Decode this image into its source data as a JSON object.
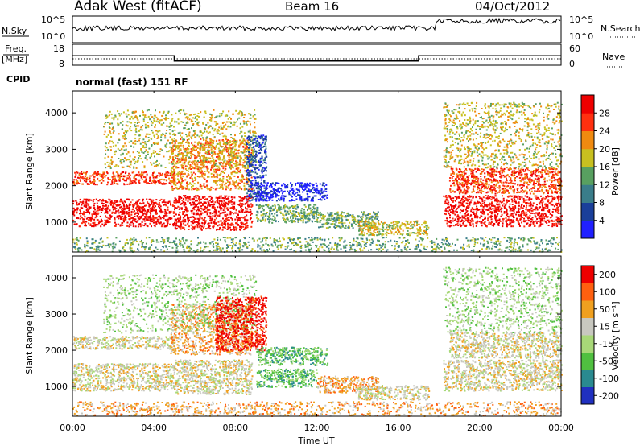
{
  "header": {
    "station": "Adak West (fitACF)",
    "beam": "Beam 16",
    "date": "04/Oct/2012"
  },
  "sky_panel": {
    "left_label": "N.Sky",
    "right_label": "N.Search",
    "left_ticks": [
      "10^5",
      "10^0"
    ],
    "right_ticks": [
      "10^5",
      "10^0"
    ]
  },
  "freq_panel": {
    "label_line1": "Freq.",
    "label_line2": "[MHz]",
    "ticks": [
      "18",
      "8"
    ],
    "nave_label": "Nave",
    "nave_ticks": [
      "60",
      "0"
    ],
    "freq_steps": [
      [
        0,
        12.5
      ],
      [
        5,
        10.0
      ],
      [
        17,
        12.5
      ],
      [
        24,
        12.5
      ]
    ]
  },
  "cpid": {
    "label": "CPID",
    "value": "normal (fast) 151 RF"
  },
  "time_axis": {
    "ticks": [
      "00:00",
      "04:00",
      "08:00",
      "12:00",
      "16:00",
      "20:00",
      "00:00"
    ],
    "label": "Time UT"
  },
  "chart_data": [
    {
      "type": "heatmap",
      "name": "power",
      "ylabel": "Slant Range [km]",
      "yticks": [
        "1000",
        "2000",
        "3000",
        "4000"
      ],
      "colorbar_label": "Power [dB]",
      "colorbar_ticks": [
        "4",
        "8",
        "12",
        "16",
        "20",
        "24",
        "28"
      ],
      "colorscale": [
        "#2020ff",
        "#1a3f9a",
        "#3a7d8a",
        "#58a060",
        "#c8c020",
        "#f08a10",
        "#ff3010",
        "#ee0000"
      ],
      "x_range_hours": [
        0,
        24
      ],
      "y_range_km": [
        180,
        4600
      ],
      "regions": [
        {
          "t": [
            0.0,
            5.0
          ],
          "r": [
            900,
            1650
          ],
          "level": 7
        },
        {
          "t": [
            5.0,
            8.8
          ],
          "r": [
            800,
            1750
          ],
          "level": 7
        },
        {
          "t": [
            0.0,
            5.0
          ],
          "r": [
            2050,
            2400
          ],
          "level": 6
        },
        {
          "t": [
            4.8,
            8.8
          ],
          "r": [
            1900,
            3300
          ],
          "level": 5
        },
        {
          "t": [
            1.5,
            9.0
          ],
          "r": [
            2500,
            4100
          ],
          "level": 4
        },
        {
          "t": [
            8.5,
            9.5
          ],
          "r": [
            1600,
            3400
          ],
          "level": 1
        },
        {
          "t": [
            9.0,
            12.0
          ],
          "r": [
            1000,
            1500
          ],
          "level": 3
        },
        {
          "t": [
            12.0,
            15.0
          ],
          "r": [
            850,
            1300
          ],
          "level": 3
        },
        {
          "t": [
            14.0,
            17.5
          ],
          "r": [
            650,
            1050
          ],
          "level": 4
        },
        {
          "t": [
            9.0,
            12.5
          ],
          "r": [
            1600,
            2100
          ],
          "level": 0
        },
        {
          "t": [
            18.2,
            24.0
          ],
          "r": [
            900,
            1750
          ],
          "level": 7
        },
        {
          "t": [
            18.5,
            24.0
          ],
          "r": [
            1800,
            2500
          ],
          "level": 6
        },
        {
          "t": [
            18.2,
            24.0
          ],
          "r": [
            2500,
            4300
          ],
          "level": 4
        },
        {
          "t": [
            0.0,
            24.0
          ],
          "r": [
            200,
            600
          ],
          "level": 3
        }
      ]
    },
    {
      "type": "heatmap",
      "name": "velocity",
      "ylabel": "Slant Range [km]",
      "yticks": [
        "1000",
        "2000",
        "3000",
        "4000"
      ],
      "colorbar_label": "Velocity [m s⁻¹]",
      "colorbar_ticks": [
        "200",
        "100",
        "50",
        "15",
        "-15",
        "-50",
        "-100",
        "-200"
      ],
      "colorscale": [
        "#2030c0",
        "#2a8a90",
        "#50c040",
        "#a8d878",
        "#c8c8c0",
        "#f0a020",
        "#ff6010",
        "#ee0000"
      ],
      "x_range_hours": [
        0,
        24
      ],
      "y_range_km": [
        180,
        4600
      ],
      "regions": [
        {
          "t": [
            0.0,
            5.0
          ],
          "r": [
            900,
            1650
          ],
          "level": 4
        },
        {
          "t": [
            5.0,
            8.8
          ],
          "r": [
            800,
            1750
          ],
          "level": 4
        },
        {
          "t": [
            0.0,
            5.0
          ],
          "r": [
            2050,
            2400
          ],
          "level": 4
        },
        {
          "t": [
            4.8,
            8.8
          ],
          "r": [
            1900,
            3300
          ],
          "level": 5
        },
        {
          "t": [
            1.5,
            9.0
          ],
          "r": [
            2500,
            4100
          ],
          "level": 3
        },
        {
          "t": [
            7.0,
            9.5
          ],
          "r": [
            2000,
            3500
          ],
          "level": 7
        },
        {
          "t": [
            9.0,
            12.0
          ],
          "r": [
            1000,
            1500
          ],
          "level": 2
        },
        {
          "t": [
            12.0,
            15.0
          ],
          "r": [
            850,
            1300
          ],
          "level": 5
        },
        {
          "t": [
            14.0,
            17.5
          ],
          "r": [
            650,
            1050
          ],
          "level": 4
        },
        {
          "t": [
            9.0,
            12.5
          ],
          "r": [
            1600,
            2100
          ],
          "level": 2
        },
        {
          "t": [
            18.2,
            24.0
          ],
          "r": [
            900,
            1750
          ],
          "level": 4
        },
        {
          "t": [
            18.5,
            24.0
          ],
          "r": [
            1800,
            2500
          ],
          "level": 4
        },
        {
          "t": [
            18.2,
            24.0
          ],
          "r": [
            2500,
            4300
          ],
          "level": 3
        },
        {
          "t": [
            0.0,
            24.0
          ],
          "r": [
            200,
            600
          ],
          "level": 5
        }
      ]
    }
  ]
}
